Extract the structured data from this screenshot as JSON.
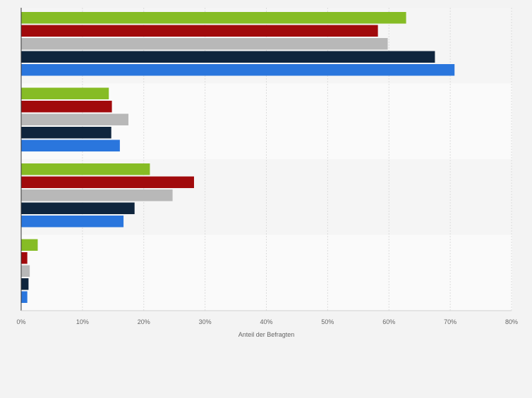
{
  "chart_data": {
    "type": "bar",
    "orientation": "horizontal",
    "xlabel": "Anteil der Befragten",
    "ylabel": "",
    "xlim": [
      0,
      80
    ],
    "x_ticks": [
      0,
      10,
      20,
      30,
      40,
      50,
      60,
      70,
      80
    ],
    "x_tick_labels": [
      "0%",
      "10%",
      "20%",
      "30%",
      "40%",
      "50%",
      "60%",
      "70%",
      "80%"
    ],
    "grid": true,
    "categories": [
      "",
      "",
      "",
      ""
    ],
    "series": [
      {
        "color": "#86bc25",
        "values": [
          62.8,
          14.3,
          21.0,
          2.7
        ]
      },
      {
        "color": "#a10a0c",
        "values": [
          58.2,
          14.8,
          28.2,
          1.0
        ]
      },
      {
        "color": "#b8b8b8",
        "values": [
          59.8,
          17.5,
          24.7,
          1.4
        ]
      },
      {
        "color": "#0f253d",
        "values": [
          67.5,
          14.7,
          18.5,
          1.2
        ]
      },
      {
        "color": "#2a76dd",
        "values": [
          70.7,
          16.1,
          16.7,
          1.0
        ]
      }
    ]
  }
}
